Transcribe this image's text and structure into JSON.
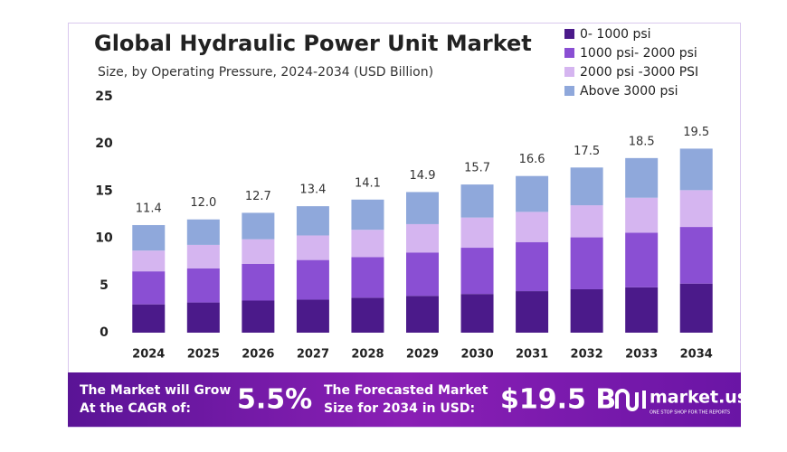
{
  "chart_data": {
    "type": "stacked_bar",
    "title": "Global Hydraulic Power Unit Market",
    "subtitle": "Size, by Operating Pressure, 2024-2034 (USD Billion)",
    "categories": [
      "2024",
      "2025",
      "2026",
      "2027",
      "2028",
      "2029",
      "2030",
      "2031",
      "2032",
      "2033",
      "2034"
    ],
    "series": [
      {
        "name": "0- 1000 psi",
        "color": "#4b1a8a",
        "values": [
          3.0,
          3.2,
          3.4,
          3.5,
          3.7,
          3.9,
          4.1,
          4.4,
          4.6,
          4.8,
          5.2
        ]
      },
      {
        "name": "1000 psi- 2000 psi",
        "color": "#8a4fd3",
        "values": [
          3.5,
          3.6,
          3.9,
          4.2,
          4.3,
          4.6,
          4.9,
          5.2,
          5.5,
          5.8,
          6.0
        ]
      },
      {
        "name": "2000 psi -3000 PSI",
        "color": "#d5b5f0",
        "values": [
          2.2,
          2.5,
          2.6,
          2.6,
          2.9,
          3.0,
          3.2,
          3.2,
          3.4,
          3.7,
          3.9
        ]
      },
      {
        "name": "Above 3000 psi",
        "color": "#8fa8db",
        "values": [
          2.7,
          2.7,
          2.8,
          3.1,
          3.2,
          3.4,
          3.5,
          3.8,
          4.0,
          4.2,
          4.4
        ]
      }
    ],
    "totals": [
      11.4,
      12.0,
      12.7,
      13.4,
      14.1,
      14.9,
      15.7,
      16.6,
      17.5,
      18.5,
      19.5
    ],
    "totals_value_labels": [
      "11.4",
      "12.0",
      "12.7",
      "13.4",
      "14.1",
      "14.9",
      "15.7",
      "16.6",
      "17.5",
      "18.5",
      "19.5"
    ],
    "ylim": [
      0,
      25
    ],
    "yticks": [
      0,
      5,
      10,
      15,
      20,
      25
    ],
    "grid": false,
    "legend": "top-right"
  },
  "footer": {
    "cagr_text": [
      "The Market will Grow",
      "At the CAGR of:"
    ],
    "cagr": "5.5%",
    "forecast_text": [
      "The Forecasted Market",
      "Size for 2034 in USD:"
    ],
    "forecast": "$19.5 B",
    "logo": "market.us",
    "tagline": "ONE STOP SHOP FOR THE REPORTS"
  }
}
